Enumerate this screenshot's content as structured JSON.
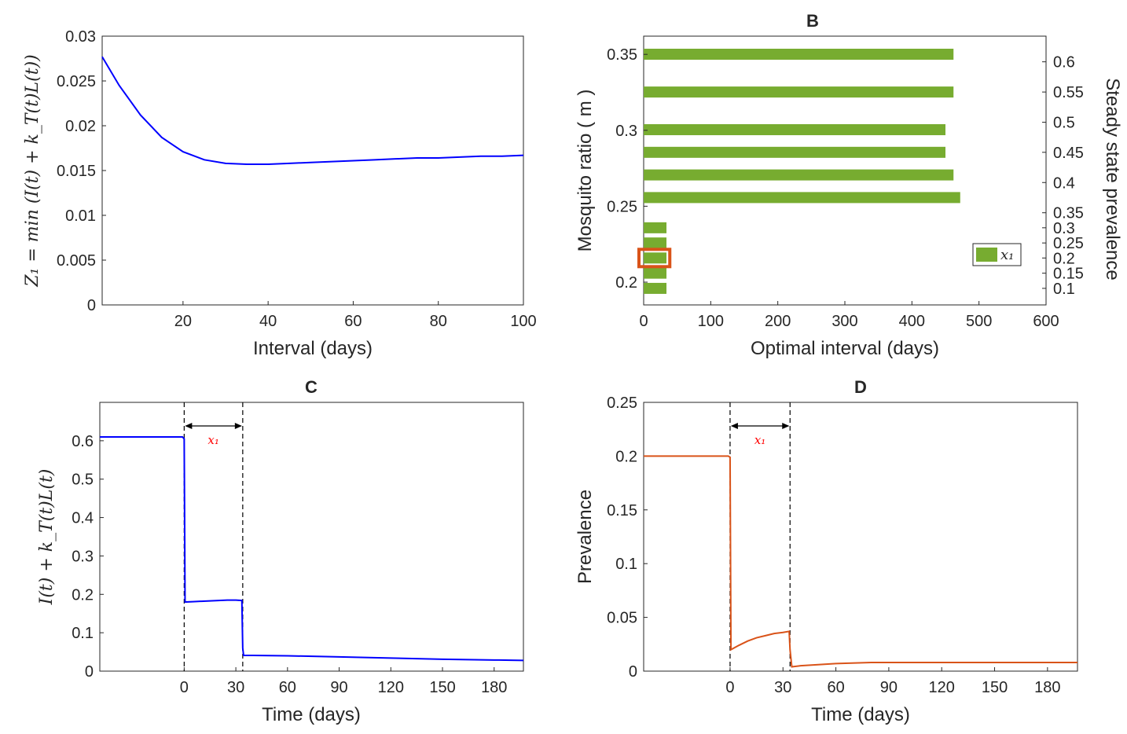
{
  "chart_data": [
    {
      "panel": "A",
      "type": "line",
      "title": "",
      "xlabel": "Interval (days)",
      "ylabel": "Z₁ = min (I(t) + k_T(t)L(t))",
      "xlim": [
        1,
        100
      ],
      "ylim": [
        0,
        0.03
      ],
      "xticks": [
        20,
        40,
        60,
        80,
        100
      ],
      "yticks": [
        0,
        0.005,
        0.01,
        0.015,
        0.02,
        0.025,
        0.03
      ],
      "ytick_labels": [
        "0",
        "0.005",
        "0.01",
        "0.015",
        "0.02",
        "0.025",
        "0.03"
      ],
      "series": [
        {
          "name": "Z1",
          "color": "#0000ff",
          "x": [
            1,
            5,
            10,
            15,
            20,
            25,
            30,
            35,
            40,
            45,
            50,
            55,
            60,
            65,
            70,
            75,
            80,
            85,
            90,
            95,
            100
          ],
          "y": [
            0.0277,
            0.0245,
            0.0212,
            0.0187,
            0.0171,
            0.0162,
            0.0158,
            0.0157,
            0.0157,
            0.0158,
            0.0159,
            0.016,
            0.0161,
            0.0162,
            0.0163,
            0.0164,
            0.0164,
            0.0165,
            0.0166,
            0.0166,
            0.0167
          ]
        }
      ]
    },
    {
      "panel": "B",
      "type": "bar",
      "orientation": "horizontal",
      "title": "B",
      "xlabel": "Optimal interval (days)",
      "ylabel": "Mosquito ratio ( m )",
      "ylabel_right": "Steady state prevalence",
      "xlim": [
        0,
        600
      ],
      "xticks": [
        0,
        100,
        200,
        300,
        400,
        500,
        600
      ],
      "ylim": [
        0.185,
        0.362
      ],
      "yticks": [
        0.2,
        0.25,
        0.3,
        0.35
      ],
      "yticks_right": [
        0.1,
        0.15,
        0.2,
        0.25,
        0.3,
        0.35,
        0.4,
        0.45,
        0.5,
        0.55,
        0.6
      ],
      "yticks_right_pos": [
        0.1959,
        0.2059,
        0.2159,
        0.2258,
        0.2358,
        0.2457,
        0.2656,
        0.2855,
        0.3053,
        0.3252,
        0.3451
      ],
      "legend": "x₁",
      "legend_position": "right",
      "color": "#77ac30",
      "highlight_color": "#d95319",
      "highlight_m": 0.2159,
      "bars": [
        {
          "m": 0.1959,
          "value": 34
        },
        {
          "m": 0.2059,
          "value": 34
        },
        {
          "m": 0.2159,
          "value": 34
        },
        {
          "m": 0.2258,
          "value": 34
        },
        {
          "m": 0.2358,
          "value": 34
        },
        {
          "m": 0.2557,
          "value": 472
        },
        {
          "m": 0.2706,
          "value": 462
        },
        {
          "m": 0.2855,
          "value": 450
        },
        {
          "m": 0.3004,
          "value": 450
        },
        {
          "m": 0.3252,
          "value": 462
        },
        {
          "m": 0.3501,
          "value": 462
        }
      ]
    },
    {
      "panel": "C",
      "type": "line",
      "title": "C",
      "xlabel": "Time (days)",
      "ylabel": "I(t) + k_T(t)L(t)",
      "xlim": [
        -49,
        197
      ],
      "ylim": [
        0,
        0.7
      ],
      "xticks": [
        0,
        30,
        60,
        90,
        120,
        150,
        180
      ],
      "yticks": [
        0,
        0.1,
        0.2,
        0.3,
        0.4,
        0.5,
        0.6
      ],
      "annotation": "x₁",
      "vlines": [
        0,
        34
      ],
      "series": [
        {
          "name": "I+kL",
          "color": "#0000ff",
          "x": [
            -49,
            -1,
            0,
            0.5,
            5,
            10,
            15,
            20,
            25,
            30,
            33.5,
            34,
            34.5,
            40,
            60,
            90,
            120,
            150,
            180,
            197
          ],
          "y": [
            0.61,
            0.61,
            0.605,
            0.18,
            0.181,
            0.182,
            0.183,
            0.184,
            0.185,
            0.185,
            0.184,
            0.06,
            0.041,
            0.041,
            0.04,
            0.037,
            0.034,
            0.031,
            0.029,
            0.028
          ]
        }
      ]
    },
    {
      "panel": "D",
      "type": "line",
      "title": "D",
      "xlabel": "Time (days)",
      "ylabel": "Prevalence",
      "xlim": [
        -49,
        197
      ],
      "ylim": [
        0,
        0.25
      ],
      "xticks": [
        0,
        30,
        60,
        90,
        120,
        150,
        180
      ],
      "yticks": [
        0,
        0.05,
        0.1,
        0.15,
        0.2,
        0.25
      ],
      "annotation": "x₁",
      "vlines": [
        0,
        34
      ],
      "series": [
        {
          "name": "Prevalence",
          "color": "#d95319",
          "x": [
            -49,
            -1,
            0,
            0.5,
            5,
            10,
            15,
            20,
            25,
            30,
            33.5,
            34,
            35,
            40,
            50,
            60,
            80,
            100,
            120,
            150,
            180,
            197
          ],
          "y": [
            0.2,
            0.2,
            0.199,
            0.02,
            0.024,
            0.028,
            0.031,
            0.033,
            0.035,
            0.036,
            0.037,
            0.02,
            0.004,
            0.005,
            0.006,
            0.007,
            0.008,
            0.008,
            0.008,
            0.008,
            0.008,
            0.008
          ]
        }
      ]
    }
  ]
}
